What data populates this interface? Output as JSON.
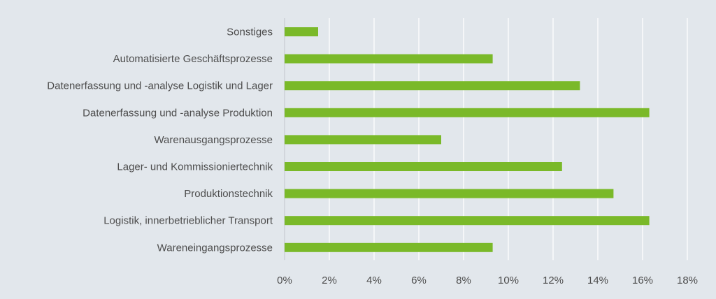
{
  "chart_data": {
    "type": "bar",
    "orientation": "horizontal",
    "categories": [
      "Sonstiges",
      "Automatisierte Geschäftsprozesse",
      "Datenerfassung und -analyse Logistik und Lager",
      "Datenerfassung und -analyse Produktion",
      "Warenausgangsprozesse",
      "Lager- und Kommissioniertechnik",
      "Produktionstechnik",
      "Logistik, innerbetrieblicher Transport",
      "Wareneingangsprozesse"
    ],
    "values": [
      1.5,
      9.3,
      13.2,
      16.3,
      7.0,
      12.4,
      14.7,
      16.3,
      9.3
    ],
    "value_unit": "percent",
    "xlim": [
      0,
      18
    ],
    "x_ticks": [
      0,
      2,
      4,
      6,
      8,
      10,
      12,
      14,
      16,
      18
    ],
    "x_tick_labels": [
      "0%",
      "2%",
      "4%",
      "6%",
      "8%",
      "10%",
      "12%",
      "14%",
      "16%",
      "18%"
    ],
    "grid": "vertical",
    "legend": "none",
    "colors": {
      "bar": "#7ab929",
      "background": "#e2e7ec",
      "grid": "#ffffff",
      "text": "#4d4d4d"
    }
  }
}
